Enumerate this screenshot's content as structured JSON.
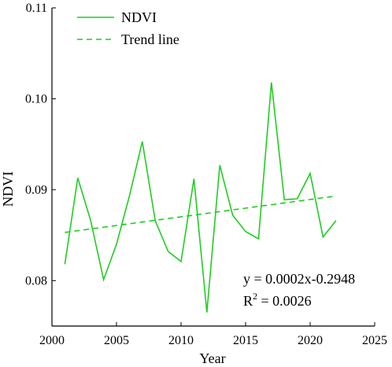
{
  "chart_data": {
    "type": "line",
    "xlabel": "Year",
    "ylabel": "NDVI",
    "xlim": [
      2000,
      2025
    ],
    "ylim": [
      0.075,
      0.11
    ],
    "xticks": [
      2000,
      2005,
      2010,
      2015,
      2020,
      2025
    ],
    "yticks": [
      0.08,
      0.09,
      0.1,
      0.11
    ],
    "ytick_labels": [
      "0.08",
      "0.09",
      "0.10",
      "0.11"
    ],
    "grid": false,
    "legend_position": "top-left",
    "series": [
      {
        "name": "NDVI",
        "style": "solid",
        "color": "#22cc22",
        "x": [
          2001,
          2002,
          2003,
          2004,
          2005,
          2006,
          2007,
          2008,
          2009,
          2010,
          2011,
          2012,
          2013,
          2014,
          2015,
          2016,
          2017,
          2018,
          2019,
          2020,
          2021,
          2022
        ],
        "y": [
          0.0818,
          0.0913,
          0.0866,
          0.0801,
          0.084,
          0.0893,
          0.0953,
          0.0866,
          0.0832,
          0.0821,
          0.0912,
          0.0765,
          0.0927,
          0.0872,
          0.0854,
          0.0846,
          0.1018,
          0.0889,
          0.089,
          0.0918,
          0.0848,
          0.0866
        ]
      },
      {
        "name": "Trend line",
        "style": "dashed",
        "color": "#22cc22",
        "x": [
          2001,
          2022
        ],
        "y": [
          0.0853,
          0.0893
        ]
      }
    ],
    "annotations": {
      "equation": "y = 0.0002x-0.2948",
      "r2_prefix": "R",
      "r2_superscript": "2",
      "r2_value": " = 0.0026"
    }
  }
}
